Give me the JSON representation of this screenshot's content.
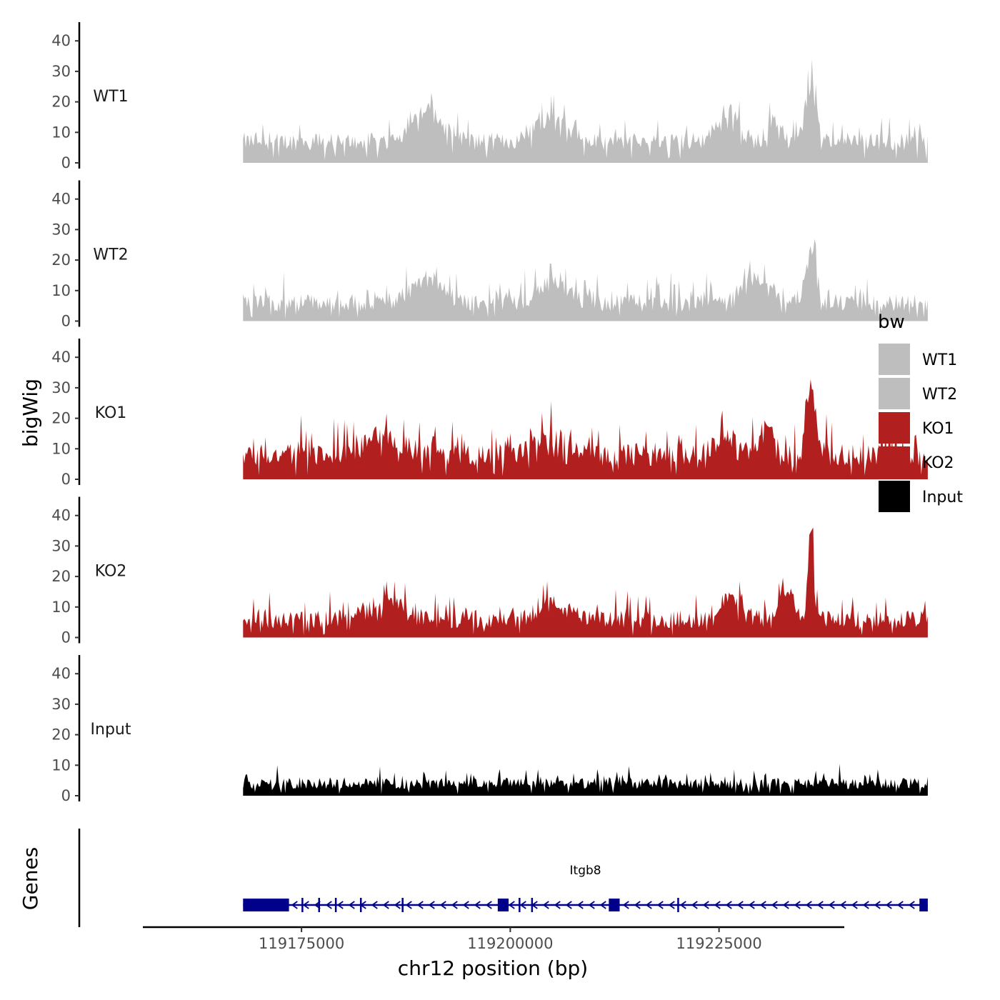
{
  "chart_data": {
    "type": "area",
    "title": "",
    "chromosome": "chr12",
    "xlabel": "chr12 position (bp)",
    "ylabel": "bigWig",
    "genes_axis_label": "Genes",
    "xlim": [
      119156000,
      119240000
    ],
    "x_ticks": [
      119175000,
      119200000,
      119225000
    ],
    "x_tick_labels": [
      "119175000",
      "119200000",
      "119225000"
    ],
    "data_range": [
      119168000,
      119250000
    ],
    "ylim": [
      0,
      45
    ],
    "y_ticks": [
      0,
      10,
      20,
      30,
      40
    ],
    "y_tick_labels": [
      "0",
      "10",
      "20",
      "30",
      "40"
    ],
    "legend": {
      "title": "bw",
      "position": "right",
      "entries": [
        {
          "label": "WT1",
          "color": "#bebebe"
        },
        {
          "label": "WT2",
          "color": "#bebebe"
        },
        {
          "label": "KO1",
          "color": "#b21f1f"
        },
        {
          "label": "KO2",
          "color": "#b21f1f"
        },
        {
          "label": "Input",
          "color": "#000000"
        }
      ]
    },
    "series": [
      {
        "name": "WT1",
        "color": "#bebebe",
        "baseline": 7,
        "noise": 5,
        "peaks": [
          [
            119190000,
            10,
            2500
          ],
          [
            119205000,
            8,
            2500
          ],
          [
            119226000,
            10,
            1800
          ],
          [
            119236000,
            18,
            900
          ],
          [
            119231500,
            8,
            900
          ]
        ]
      },
      {
        "name": "WT2",
        "color": "#bebebe",
        "baseline": 6,
        "noise": 5,
        "peaks": [
          [
            119190000,
            8,
            2500
          ],
          [
            119205000,
            6,
            2500
          ],
          [
            119229000,
            8,
            2500
          ],
          [
            119236000,
            16,
            900
          ]
        ]
      },
      {
        "name": "KO1",
        "color": "#b21f1f",
        "baseline": 8,
        "noise": 6,
        "peaks": [
          [
            119185000,
            6,
            3000
          ],
          [
            119205000,
            6,
            2500
          ],
          [
            119226000,
            6,
            2000
          ],
          [
            119236000,
            22,
            900
          ],
          [
            119231000,
            8,
            1200
          ]
        ]
      },
      {
        "name": "KO2",
        "color": "#b21f1f",
        "baseline": 6,
        "noise": 5,
        "peaks": [
          [
            119185000,
            5,
            3000
          ],
          [
            119205000,
            5,
            2500
          ],
          [
            119226000,
            6,
            2000
          ],
          [
            119233000,
            10,
            1200
          ],
          [
            119236000,
            30,
            450
          ]
        ]
      },
      {
        "name": "Input",
        "color": "#000000",
        "baseline": 4,
        "noise": 3,
        "peaks": []
      }
    ],
    "genes": [
      {
        "name": "Itgb8",
        "strand": "-",
        "color": "#00008b",
        "start": 119168000,
        "end": 119250000,
        "exons": [
          [
            119168000,
            119173500
          ],
          [
            119175000,
            119175200
          ],
          [
            119177000,
            119177200
          ],
          [
            119179000,
            119179200
          ],
          [
            119182000,
            119182150
          ],
          [
            119187000,
            119187200
          ],
          [
            119198500,
            119199800
          ],
          [
            119201000,
            119201200
          ],
          [
            119202500,
            119202700
          ],
          [
            119211800,
            119213100
          ],
          [
            119220000,
            119220200
          ],
          [
            119249000,
            119250000
          ]
        ]
      }
    ]
  }
}
